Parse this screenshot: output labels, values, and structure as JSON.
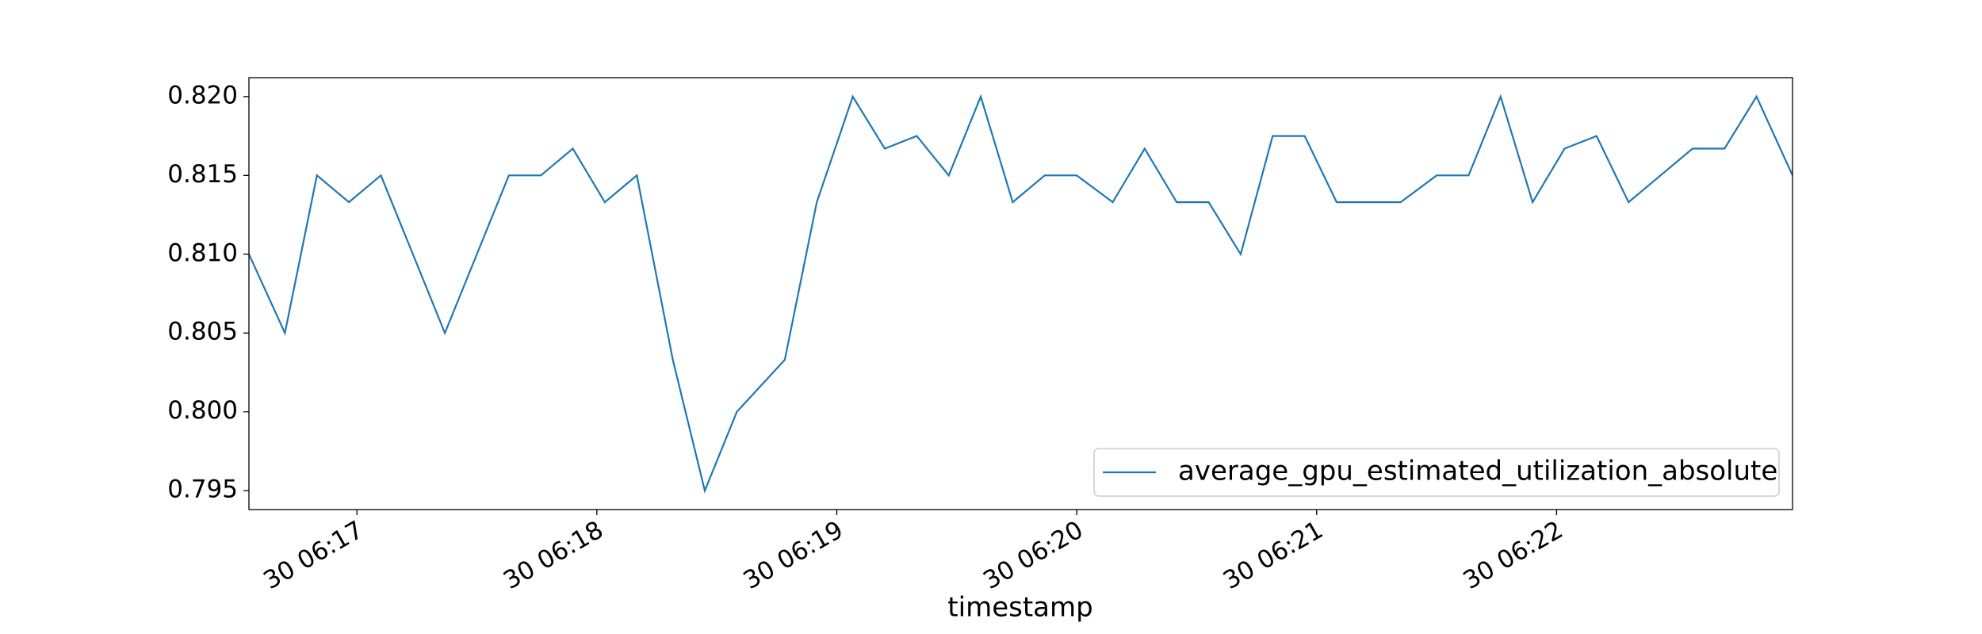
{
  "chart_data": {
    "type": "line",
    "xlabel": "timestamp",
    "x": [
      "30 06:16:33",
      "30 06:16:42",
      "30 06:16:50",
      "30 06:16:58",
      "30 06:17:06",
      "30 06:17:14",
      "30 06:17:22",
      "30 06:17:30",
      "30 06:17:38",
      "30 06:17:46",
      "30 06:17:54",
      "30 06:18:02",
      "30 06:18:10",
      "30 06:18:19",
      "30 06:18:27",
      "30 06:18:35",
      "30 06:18:47",
      "30 06:18:55",
      "30 06:19:04",
      "30 06:19:12",
      "30 06:19:20",
      "30 06:19:28",
      "30 06:19:36",
      "30 06:19:44",
      "30 06:19:52",
      "30 06:20:00",
      "30 06:20:09",
      "30 06:20:17",
      "30 06:20:25",
      "30 06:20:33",
      "30 06:20:41",
      "30 06:20:49",
      "30 06:20:57",
      "30 06:21:05",
      "30 06:21:13",
      "30 06:21:21",
      "30 06:21:30",
      "30 06:21:38",
      "30 06:21:46",
      "30 06:21:54",
      "30 06:22:02",
      "30 06:22:10",
      "30 06:22:18",
      "30 06:22:26",
      "30 06:22:34",
      "30 06:22:42",
      "30 06:22:50",
      "30 06:22:59"
    ],
    "series": [
      {
        "name": "average_gpu_estimated_utilization_absolute",
        "color": "#1f77b4",
        "values": [
          0.81,
          0.805,
          0.815,
          0.8133,
          0.815,
          0.81,
          0.805,
          0.81,
          0.815,
          0.815,
          0.8167,
          0.8133,
          0.815,
          0.8033,
          0.795,
          0.8,
          0.8033,
          0.8133,
          0.82,
          0.8167,
          0.8175,
          0.815,
          0.82,
          0.8133,
          0.815,
          0.815,
          0.8133,
          0.8167,
          0.8133,
          0.8133,
          0.81,
          0.8175,
          0.8175,
          0.8133,
          0.8133,
          0.8133,
          0.815,
          0.815,
          0.82,
          0.8133,
          0.8167,
          0.8175,
          0.8133,
          0.815,
          0.8167,
          0.8167,
          0.82,
          0.815
        ]
      }
    ],
    "xlim": [
      "30 06:16:33",
      "30 06:22:59"
    ],
    "xticks": [
      "30 06:17",
      "30 06:18",
      "30 06:19",
      "30 06:20",
      "30 06:21",
      "30 06:22"
    ],
    "ylim": [
      0.7938,
      0.8212
    ],
    "yticks": [
      0.795,
      {
        "value": 0.8,
        "label": "0.800"
      },
      0.805,
      {
        "value": 0.81,
        "label": "0.810"
      },
      0.815,
      {
        "value": 0.82,
        "label": "0.820"
      }
    ],
    "legend": "lower right"
  }
}
